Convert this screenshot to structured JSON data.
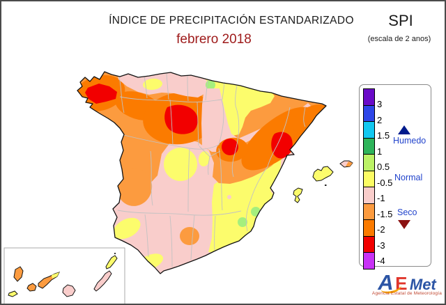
{
  "header": {
    "title": "ÍNDICE DE PRECIPITACIÓN ESTANDARIZADO",
    "subtitle": "febrero 2018",
    "index_abbr": "SPI",
    "scale_note": "(escala de 2 anos)"
  },
  "legend": {
    "ticks": [
      "3",
      "2",
      "1.5",
      "1",
      "0.5",
      "-0.5",
      "-1",
      "-1.5",
      "-2",
      "-3",
      "-4"
    ],
    "colors": [
      "#6a0bc8",
      "#2e46e8",
      "#12c8f0",
      "#2eb45a",
      "#bcf266",
      "#fcfc64",
      "#f9cdcb",
      "#fc9b3f",
      "#fb7b00",
      "#f20000",
      "#c832f5"
    ],
    "humid_label": "Humedo",
    "normal_label": "Normal",
    "dry_label": "Seco",
    "humid_triangle_color": "#001a8c",
    "dry_triangle_color": "#8b1212",
    "label_text_color": "#2244cc"
  },
  "map": {
    "palette": {
      "pink": "#f9cdcb",
      "yellow": "#fcfc6c",
      "light_orange": "#fc9b3f",
      "dark_orange": "#fb7b00",
      "red": "#f20000",
      "green": "#a5ef7d"
    },
    "coast_color": "#111111",
    "province_line_color": "#c2c2c2"
  },
  "colors": {
    "subtitle_red": "#9e1a1a",
    "text_black": "#1a1a1a"
  },
  "logo": {
    "a": "A",
    "e": "E",
    "met": "Met",
    "tagline": "Agencia Estatal de Meteorología"
  }
}
